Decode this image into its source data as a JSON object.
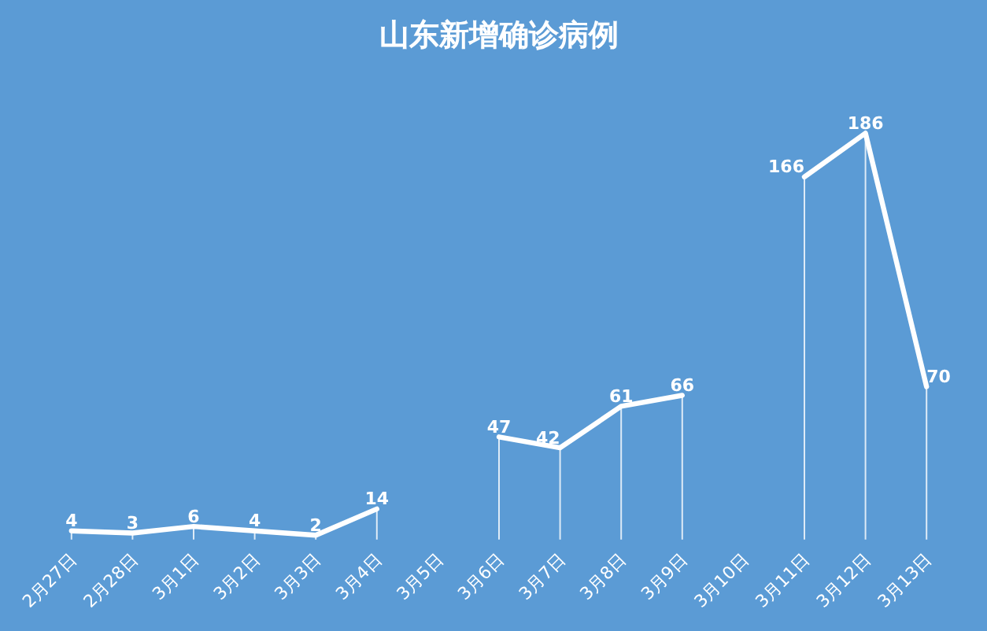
{
  "chart_data": {
    "type": "line",
    "title": "山东新增确诊病例",
    "categories": [
      "2月27日",
      "2月28日",
      "3月1日",
      "3月2日",
      "3月3日",
      "3月4日",
      "3月5日",
      "3月6日",
      "3月7日",
      "3月8日",
      "3月9日",
      "3月10日",
      "3月11日",
      "3月12日",
      "3月13日"
    ],
    "series": [
      {
        "color": "#ffffff",
        "values": [
          4,
          3,
          6,
          4,
          2,
          14,
          null,
          47,
          42,
          61,
          66,
          null,
          166,
          186,
          70
        ]
      }
    ],
    "data_labels": true,
    "marker": "none",
    "line_style": "solid"
  }
}
